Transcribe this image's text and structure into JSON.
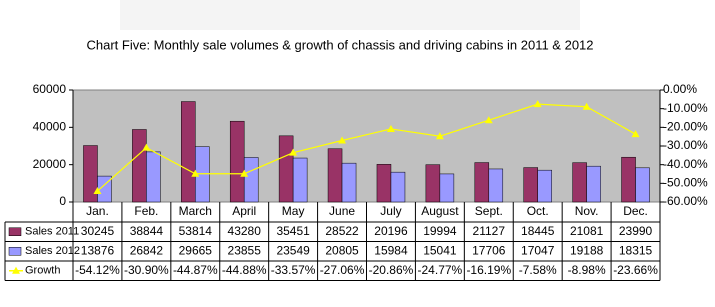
{
  "chart_data": {
    "type": "bar",
    "title": "Chart Five: Monthly sale volumes & growth of chassis and driving cabins in 2011 & 2012",
    "categories": [
      "Jan.",
      "Feb.",
      "March",
      "April",
      "May",
      "June",
      "July",
      "August",
      "Sept.",
      "Oct.",
      "Nov.",
      "Dec."
    ],
    "series": [
      {
        "name": "Sales 2011",
        "color": "#993366",
        "values": [
          30245,
          38844,
          53814,
          43280,
          35451,
          28522,
          20196,
          19994,
          21127,
          18445,
          21081,
          23990
        ]
      },
      {
        "name": "Sales 2012",
        "color": "#9999ff",
        "values": [
          13876,
          26842,
          29665,
          23855,
          23549,
          20805,
          15984,
          15041,
          17706,
          17047,
          19188,
          18315
        ]
      },
      {
        "name": "Growth",
        "color": "#ffff00",
        "type": "line",
        "axis": "y2",
        "values": [
          -54.12,
          -30.9,
          -44.87,
          -44.88,
          -33.57,
          -27.06,
          -20.86,
          -24.77,
          -16.19,
          -7.58,
          -8.98,
          -23.66
        ],
        "value_labels": [
          "-54.12%",
          "-30.90%",
          "-44.87%",
          "-44.88%",
          "-33.57%",
          "-27.06%",
          "-20.86%",
          "-24.77%",
          "-16.19%",
          "-7.58%",
          "-8.98%",
          "-23.66%"
        ]
      }
    ],
    "ylim": [
      0,
      60000
    ],
    "yticks": [
      0,
      20000,
      40000,
      60000
    ],
    "y2lim": [
      -60,
      0
    ],
    "y2ticks": [
      {
        "value": 0,
        "label": "0.00%"
      },
      {
        "value": -10,
        "label": "-10.00%"
      },
      {
        "value": -20,
        "label": "-20.00%"
      },
      {
        "value": -30,
        "label": "-30.00%"
      },
      {
        "value": -40,
        "label": "-40.00%"
      },
      {
        "value": -50,
        "label": "-50.00%"
      },
      {
        "value": -60,
        "label": "-60.00%"
      }
    ],
    "plot_background": "#c0c0c0"
  }
}
